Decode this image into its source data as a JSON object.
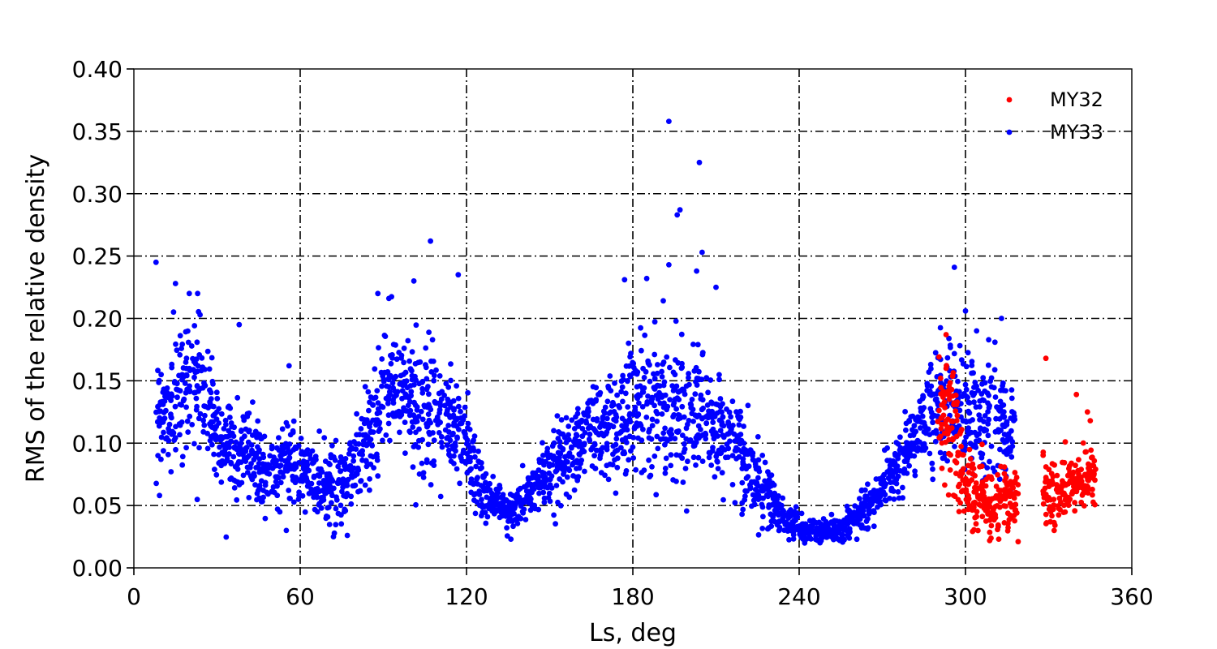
{
  "chart_data": {
    "type": "scatter",
    "title": "",
    "xlabel": "Ls, deg",
    "ylabel": "RMS of the relative density",
    "xlim": [
      0,
      360
    ],
    "ylim": [
      0,
      0.4
    ],
    "xticks": [
      0,
      60,
      120,
      180,
      240,
      300,
      360
    ],
    "yticks": [
      0.0,
      0.05,
      0.1,
      0.15,
      0.2,
      0.25,
      0.3,
      0.35,
      0.4
    ],
    "xtick_labels": [
      "0",
      "60",
      "120",
      "180",
      "240",
      "300",
      "360"
    ],
    "ytick_labels": [
      "0.00",
      "0.05",
      "0.10",
      "0.15",
      "0.20",
      "0.25",
      "0.30",
      "0.35",
      "0.40"
    ],
    "grid": true,
    "legend": "top-right",
    "series": [
      {
        "name": "MY32",
        "color": "#ff0000",
        "envelope": [
          [
            290,
            0.12,
            0.035
          ],
          [
            295,
            0.11,
            0.035
          ],
          [
            300,
            0.07,
            0.02
          ],
          [
            305,
            0.055,
            0.018
          ],
          [
            310,
            0.05,
            0.018
          ],
          [
            315,
            0.055,
            0.02
          ],
          [
            319,
            0.06,
            0.02
          ],
          [
            328,
            0.06,
            0.015
          ],
          [
            333,
            0.06,
            0.015
          ],
          [
            338,
            0.065,
            0.015
          ],
          [
            343,
            0.07,
            0.018
          ],
          [
            347,
            0.075,
            0.018
          ]
        ],
        "points": [
          [
            293,
            0.187
          ],
          [
            329,
            0.168
          ],
          [
            340,
            0.139
          ],
          [
            344,
            0.125
          ],
          [
            345,
            0.118
          ],
          [
            319,
            0.021
          ],
          [
            312,
            0.023
          ],
          [
            332,
            0.03
          ],
          [
            301,
            0.082
          ],
          [
            306,
            0.099
          ],
          [
            291,
            0.152
          ],
          [
            293,
            0.16
          ],
          [
            336,
            0.101
          ]
        ]
      },
      {
        "name": "MY33",
        "color": "#0000ff",
        "envelope": [
          [
            8,
            0.13,
            0.03
          ],
          [
            12,
            0.12,
            0.03
          ],
          [
            16,
            0.14,
            0.035
          ],
          [
            20,
            0.15,
            0.035
          ],
          [
            24,
            0.15,
            0.03
          ],
          [
            30,
            0.11,
            0.025
          ],
          [
            35,
            0.1,
            0.025
          ],
          [
            40,
            0.095,
            0.025
          ],
          [
            45,
            0.08,
            0.02
          ],
          [
            50,
            0.08,
            0.02
          ],
          [
            55,
            0.085,
            0.02
          ],
          [
            60,
            0.08,
            0.02
          ],
          [
            65,
            0.07,
            0.02
          ],
          [
            70,
            0.065,
            0.02
          ],
          [
            75,
            0.07,
            0.022
          ],
          [
            80,
            0.085,
            0.025
          ],
          [
            85,
            0.11,
            0.03
          ],
          [
            90,
            0.14,
            0.03
          ],
          [
            95,
            0.15,
            0.03
          ],
          [
            100,
            0.135,
            0.028
          ],
          [
            105,
            0.125,
            0.028
          ],
          [
            110,
            0.12,
            0.028
          ],
          [
            115,
            0.115,
            0.025
          ],
          [
            120,
            0.1,
            0.025
          ],
          [
            125,
            0.06,
            0.015
          ],
          [
            130,
            0.055,
            0.012
          ],
          [
            135,
            0.045,
            0.01
          ],
          [
            140,
            0.05,
            0.012
          ],
          [
            145,
            0.065,
            0.015
          ],
          [
            150,
            0.08,
            0.02
          ],
          [
            155,
            0.09,
            0.022
          ],
          [
            160,
            0.1,
            0.022
          ],
          [
            165,
            0.11,
            0.025
          ],
          [
            170,
            0.11,
            0.025
          ],
          [
            175,
            0.12,
            0.03
          ],
          [
            180,
            0.13,
            0.035
          ],
          [
            185,
            0.135,
            0.035
          ],
          [
            190,
            0.13,
            0.035
          ],
          [
            195,
            0.13,
            0.035
          ],
          [
            200,
            0.13,
            0.035
          ],
          [
            205,
            0.12,
            0.03
          ],
          [
            210,
            0.11,
            0.025
          ],
          [
            215,
            0.1,
            0.025
          ],
          [
            220,
            0.09,
            0.025
          ],
          [
            225,
            0.07,
            0.02
          ],
          [
            230,
            0.055,
            0.015
          ],
          [
            235,
            0.04,
            0.01
          ],
          [
            240,
            0.032,
            0.008
          ],
          [
            245,
            0.03,
            0.006
          ],
          [
            250,
            0.03,
            0.006
          ],
          [
            255,
            0.032,
            0.007
          ],
          [
            260,
            0.04,
            0.008
          ],
          [
            265,
            0.05,
            0.01
          ],
          [
            270,
            0.065,
            0.012
          ],
          [
            275,
            0.08,
            0.015
          ],
          [
            280,
            0.1,
            0.02
          ],
          [
            285,
            0.12,
            0.025
          ],
          [
            290,
            0.13,
            0.03
          ],
          [
            295,
            0.14,
            0.035
          ],
          [
            300,
            0.13,
            0.035
          ],
          [
            305,
            0.12,
            0.035
          ],
          [
            310,
            0.12,
            0.035
          ],
          [
            314,
            0.11,
            0.035
          ],
          [
            318,
            0.1,
            0.03
          ]
        ],
        "points": [
          [
            8,
            0.245
          ],
          [
            107,
            0.262
          ],
          [
            117,
            0.235
          ],
          [
            193,
            0.358
          ],
          [
            204,
            0.325
          ],
          [
            197,
            0.287
          ],
          [
            196,
            0.283
          ],
          [
            205,
            0.253
          ],
          [
            193,
            0.243
          ],
          [
            203,
            0.238
          ],
          [
            296,
            0.241
          ],
          [
            300,
            0.206
          ],
          [
            304,
            0.19
          ],
          [
            313,
            0.2
          ],
          [
            92,
            0.216
          ],
          [
            88,
            0.22
          ],
          [
            15,
            0.228
          ],
          [
            23,
            0.22
          ],
          [
            20,
            0.22
          ],
          [
            38,
            0.195
          ],
          [
            101,
            0.23
          ],
          [
            185,
            0.232
          ],
          [
            177,
            0.231
          ],
          [
            210,
            0.225
          ],
          [
            56,
            0.162
          ],
          [
            55,
            0.03
          ],
          [
            72,
            0.025
          ],
          [
            77,
            0.026
          ],
          [
            136,
            0.023
          ],
          [
            242,
            0.02
          ]
        ]
      }
    ]
  }
}
